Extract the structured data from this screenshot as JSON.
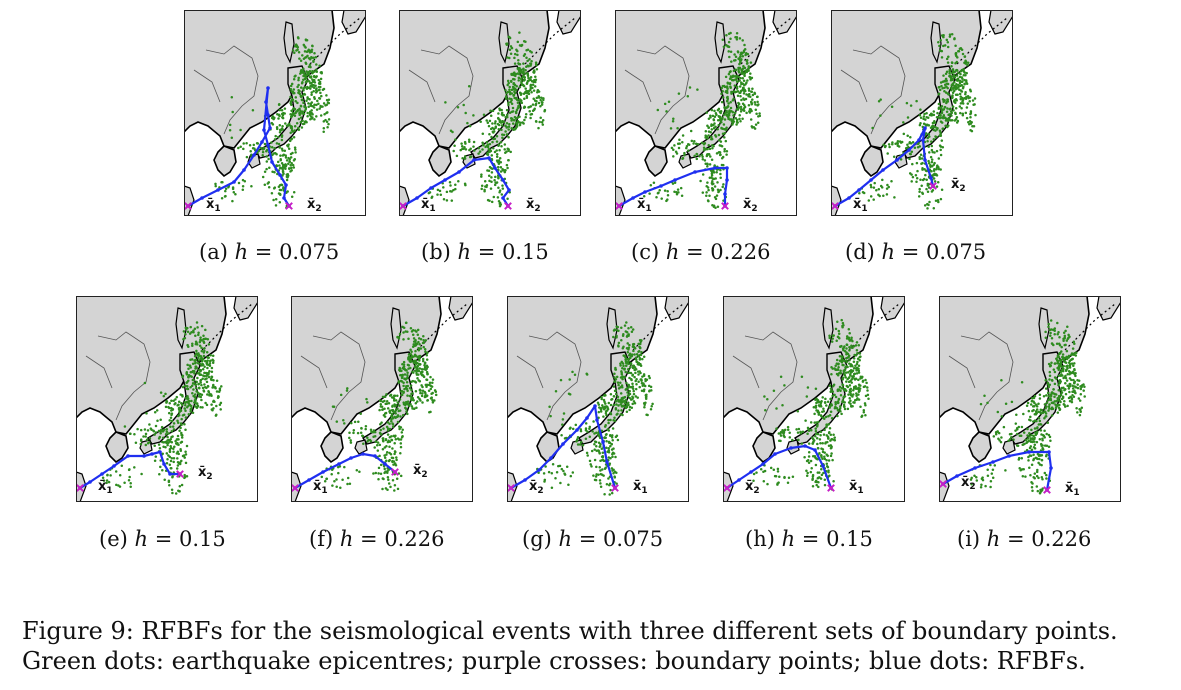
{
  "figure": {
    "caption": "Figure 9: RFBFs for the seismological events with three different sets of boundary points. Green dots: earthquake epicentres; purple crosses: boundary points; blue dots: RFBFs.",
    "colors": {
      "land": "#d4d4d4",
      "sea": "#ffffff",
      "coast": "#000000",
      "epicentres": "#2e8b1f",
      "boundary_points": "#c61fc6",
      "rfbf": "#1f2ff0"
    },
    "panels": [
      {
        "id": "a",
        "label": "(a)",
        "h_text": "h = 0.075",
        "h": 0.075,
        "start_label": "x̄",
        "start_sub": "1",
        "end_label": "x̄",
        "end_sub": "2"
      },
      {
        "id": "b",
        "label": "(b)",
        "h_text": "h = 0.15",
        "h": 0.15,
        "start_label": "x̄",
        "start_sub": "1",
        "end_label": "x̄",
        "end_sub": "2"
      },
      {
        "id": "c",
        "label": "(c)",
        "h_text": "h = 0.226",
        "h": 0.226,
        "start_label": "x̄",
        "start_sub": "1",
        "end_label": "x̄",
        "end_sub": "2"
      },
      {
        "id": "d",
        "label": "(d)",
        "h_text": "h = 0.075",
        "h": 0.075,
        "start_label": "x̄",
        "start_sub": "1",
        "end_label": "x̄",
        "end_sub": "2"
      },
      {
        "id": "e",
        "label": "(e)",
        "h_text": "h = 0.15",
        "h": 0.15,
        "start_label": "x̄",
        "start_sub": "1",
        "end_label": "x̄",
        "end_sub": "2"
      },
      {
        "id": "f",
        "label": "(f)",
        "h_text": "h = 0.226",
        "h": 0.226,
        "start_label": "x̄",
        "start_sub": "1",
        "end_label": "x̄",
        "end_sub": "2"
      },
      {
        "id": "g",
        "label": "(g)",
        "h_text": "h = 0.075",
        "h": 0.075,
        "start_label": "x̄",
        "start_sub": "2",
        "end_label": "x̄",
        "end_sub": "1"
      },
      {
        "id": "h",
        "label": "(h)",
        "h_text": "h = 0.15",
        "h": 0.15,
        "start_label": "x̄",
        "start_sub": "2",
        "end_label": "x̄",
        "end_sub": "1"
      },
      {
        "id": "i",
        "label": "(i)",
        "h_text": "h = 0.226",
        "h": 0.226,
        "start_label": "x̄",
        "start_sub": "2",
        "end_label": "x̄",
        "end_sub": "1"
      }
    ]
  }
}
